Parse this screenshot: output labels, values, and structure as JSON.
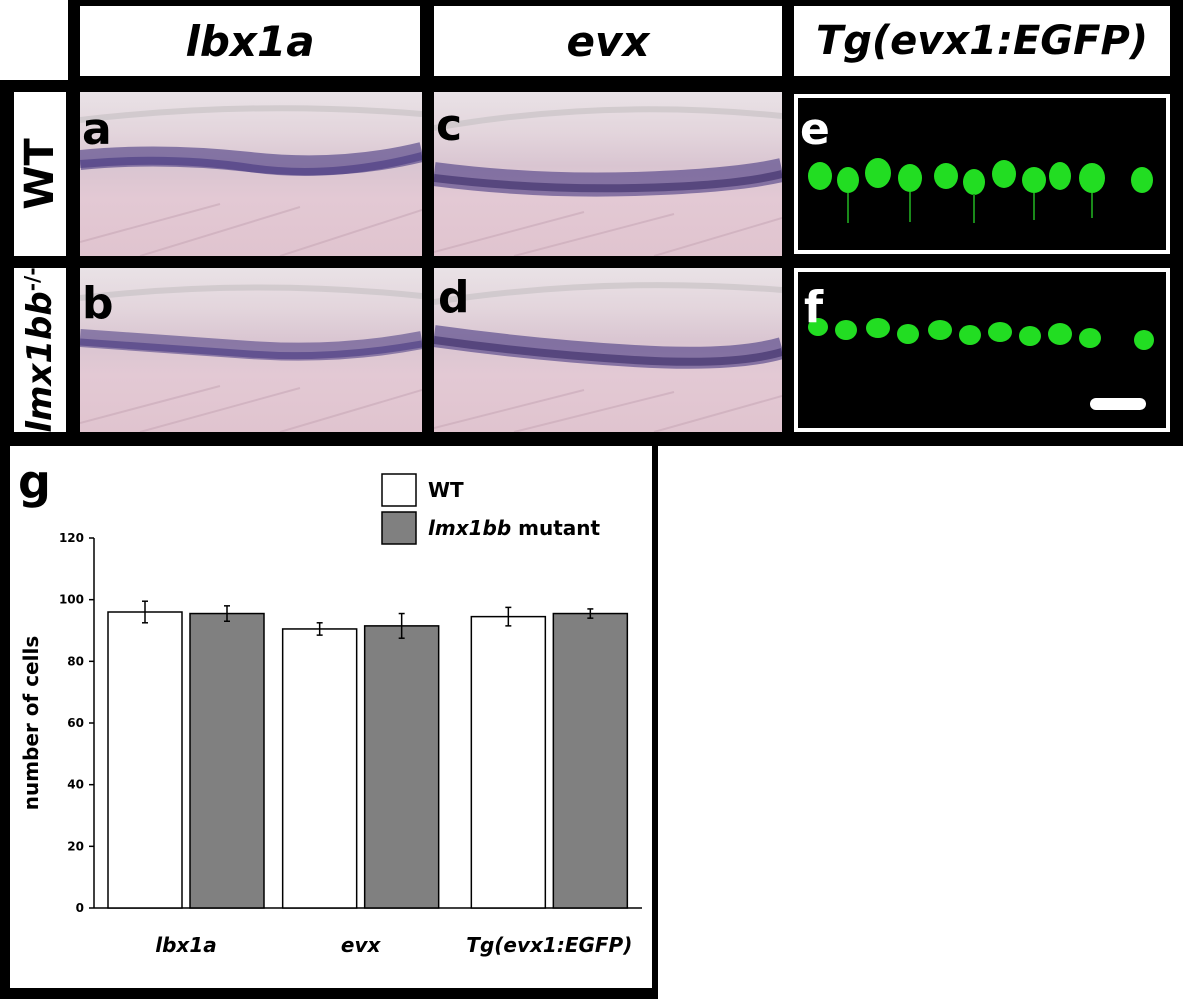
{
  "columns": [
    {
      "id": "lbx1a",
      "label": "lbx1a"
    },
    {
      "id": "evx",
      "label": "evx"
    },
    {
      "id": "tg",
      "label": "Tg(evx1:EGFP)"
    }
  ],
  "rows": [
    {
      "id": "wt",
      "label": "WT"
    },
    {
      "id": "mutant",
      "label": "lmx1bb",
      "superscript": "-/-"
    }
  ],
  "panels": {
    "a": "a",
    "b": "b",
    "c": "c",
    "d": "d",
    "e": "e",
    "f": "f",
    "g": "g"
  },
  "colors": {
    "ish_stain": "#3a2c7a",
    "gfp": "#22dd22",
    "wt_bar": "#ffffff",
    "mutant_bar": "#808080"
  },
  "chart_data": {
    "type": "bar",
    "panel_label": "g",
    "categories": [
      "lbx1a",
      "evx",
      "Tg(evx1:EGFP)"
    ],
    "series": [
      {
        "name": "WT",
        "values": [
          96,
          90.5,
          94.5
        ],
        "errors": [
          3.5,
          2,
          3
        ],
        "color": "#ffffff"
      },
      {
        "name": "lmx1bb mutant",
        "values": [
          95.5,
          91.5,
          95.5
        ],
        "errors": [
          2.5,
          4,
          1.5
        ],
        "color": "#808080"
      }
    ],
    "legend": [
      {
        "italic": "",
        "text": "WT"
      },
      {
        "italic": "lmx1bb",
        "text": " mutant"
      }
    ],
    "ylabel": "number of cells",
    "ylim": [
      0,
      120
    ],
    "yticks": [
      0,
      20,
      40,
      60,
      80,
      100,
      120
    ],
    "legend_position": "top-right",
    "grid": false
  }
}
